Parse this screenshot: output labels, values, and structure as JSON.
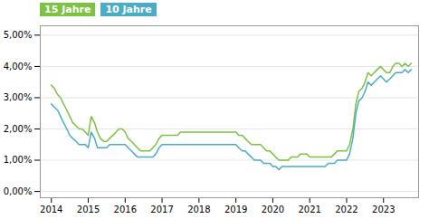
{
  "chart_data": {
    "type": "line",
    "legend": "upper left",
    "grid": true,
    "xlim": [
      2013.7,
      2023.95
    ],
    "xticks": [
      2014,
      2015,
      2016,
      2017,
      2018,
      2019,
      2020,
      2021,
      2022,
      2023
    ],
    "ylim": [
      -0.002,
      0.053
    ],
    "yticks": [
      {
        "value": 0.0,
        "label": "0,00%"
      },
      {
        "value": 0.01,
        "label": "1,00%"
      },
      {
        "value": 0.02,
        "label": "2,00%"
      },
      {
        "value": 0.03,
        "label": "3,00%"
      },
      {
        "value": 0.04,
        "label": "4,00%"
      },
      {
        "value": 0.05,
        "label": "5,00%"
      }
    ],
    "x": [
      2014.0,
      2014.08,
      2014.17,
      2014.25,
      2014.33,
      2014.42,
      2014.5,
      2014.58,
      2014.67,
      2014.75,
      2014.83,
      2014.92,
      2015.0,
      2015.08,
      2015.17,
      2015.25,
      2015.33,
      2015.42,
      2015.5,
      2015.58,
      2015.67,
      2015.75,
      2015.83,
      2015.92,
      2016.0,
      2016.08,
      2016.17,
      2016.25,
      2016.33,
      2016.42,
      2016.5,
      2016.58,
      2016.67,
      2016.75,
      2016.83,
      2016.92,
      2017.0,
      2017.08,
      2017.17,
      2017.25,
      2017.33,
      2017.42,
      2017.5,
      2017.58,
      2017.67,
      2017.75,
      2017.83,
      2017.92,
      2018.0,
      2018.08,
      2018.17,
      2018.25,
      2018.33,
      2018.42,
      2018.5,
      2018.58,
      2018.67,
      2018.75,
      2018.83,
      2018.92,
      2019.0,
      2019.08,
      2019.17,
      2019.25,
      2019.33,
      2019.42,
      2019.5,
      2019.58,
      2019.67,
      2019.75,
      2019.83,
      2019.92,
      2020.0,
      2020.08,
      2020.17,
      2020.25,
      2020.33,
      2020.42,
      2020.5,
      2020.58,
      2020.67,
      2020.75,
      2020.83,
      2020.92,
      2021.0,
      2021.08,
      2021.17,
      2021.25,
      2021.33,
      2021.42,
      2021.5,
      2021.58,
      2021.67,
      2021.75,
      2021.83,
      2021.92,
      2022.0,
      2022.08,
      2022.17,
      2022.25,
      2022.33,
      2022.42,
      2022.5,
      2022.58,
      2022.67,
      2022.75,
      2022.83,
      2022.92,
      2023.0,
      2023.08,
      2023.17,
      2023.25,
      2023.33,
      2023.42,
      2023.5,
      2023.58,
      2023.67,
      2023.75
    ],
    "series": [
      {
        "name": "15 Jahre",
        "color": "#7dc242",
        "values": [
          0.034,
          0.033,
          0.031,
          0.03,
          0.028,
          0.026,
          0.024,
          0.022,
          0.021,
          0.02,
          0.02,
          0.019,
          0.018,
          0.024,
          0.022,
          0.019,
          0.017,
          0.016,
          0.016,
          0.017,
          0.018,
          0.019,
          0.02,
          0.02,
          0.019,
          0.017,
          0.016,
          0.015,
          0.014,
          0.013,
          0.013,
          0.013,
          0.013,
          0.014,
          0.015,
          0.017,
          0.018,
          0.018,
          0.018,
          0.018,
          0.018,
          0.018,
          0.019,
          0.019,
          0.019,
          0.019,
          0.019,
          0.019,
          0.019,
          0.019,
          0.019,
          0.019,
          0.019,
          0.019,
          0.019,
          0.019,
          0.019,
          0.019,
          0.019,
          0.019,
          0.019,
          0.018,
          0.018,
          0.017,
          0.016,
          0.015,
          0.015,
          0.015,
          0.015,
          0.014,
          0.013,
          0.013,
          0.012,
          0.011,
          0.01,
          0.01,
          0.01,
          0.01,
          0.011,
          0.011,
          0.011,
          0.012,
          0.012,
          0.012,
          0.011,
          0.011,
          0.011,
          0.011,
          0.011,
          0.011,
          0.011,
          0.011,
          0.012,
          0.013,
          0.013,
          0.013,
          0.013,
          0.015,
          0.02,
          0.028,
          0.032,
          0.033,
          0.035,
          0.038,
          0.037,
          0.038,
          0.039,
          0.04,
          0.039,
          0.038,
          0.038,
          0.04,
          0.041,
          0.041,
          0.04,
          0.041,
          0.04,
          0.041
        ]
      },
      {
        "name": "10 Jahre",
        "color": "#4bacc6",
        "values": [
          0.028,
          0.027,
          0.026,
          0.024,
          0.022,
          0.02,
          0.018,
          0.017,
          0.016,
          0.015,
          0.015,
          0.015,
          0.014,
          0.019,
          0.017,
          0.014,
          0.014,
          0.014,
          0.014,
          0.015,
          0.015,
          0.015,
          0.015,
          0.015,
          0.015,
          0.014,
          0.013,
          0.012,
          0.011,
          0.011,
          0.011,
          0.011,
          0.011,
          0.011,
          0.012,
          0.014,
          0.015,
          0.015,
          0.015,
          0.015,
          0.015,
          0.015,
          0.015,
          0.015,
          0.015,
          0.015,
          0.015,
          0.015,
          0.015,
          0.015,
          0.015,
          0.015,
          0.015,
          0.015,
          0.015,
          0.015,
          0.015,
          0.015,
          0.015,
          0.015,
          0.015,
          0.014,
          0.013,
          0.013,
          0.012,
          0.011,
          0.01,
          0.01,
          0.01,
          0.009,
          0.009,
          0.009,
          0.008,
          0.008,
          0.007,
          0.008,
          0.008,
          0.008,
          0.008,
          0.008,
          0.008,
          0.008,
          0.008,
          0.008,
          0.008,
          0.008,
          0.008,
          0.008,
          0.008,
          0.008,
          0.009,
          0.009,
          0.009,
          0.01,
          0.01,
          0.01,
          0.01,
          0.012,
          0.017,
          0.025,
          0.029,
          0.03,
          0.032,
          0.035,
          0.034,
          0.035,
          0.036,
          0.037,
          0.036,
          0.035,
          0.036,
          0.037,
          0.038,
          0.038,
          0.038,
          0.039,
          0.038,
          0.039
        ]
      }
    ]
  }
}
